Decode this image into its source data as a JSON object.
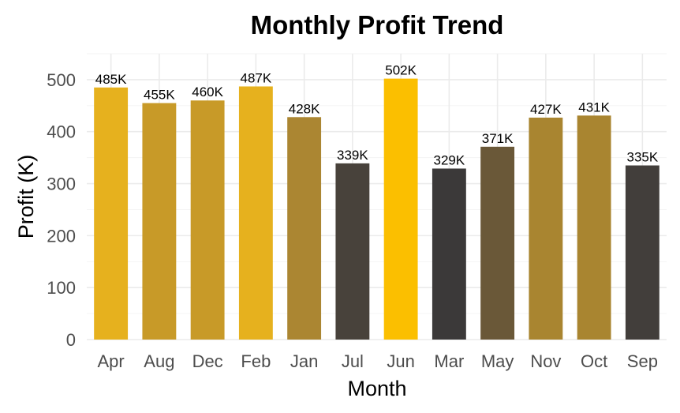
{
  "chart_data": {
    "type": "bar",
    "title": "Monthly Profit Trend",
    "xlabel": "Month",
    "ylabel": "Profit (K)",
    "categories": [
      "Apr",
      "Aug",
      "Dec",
      "Feb",
      "Jan",
      "Jul",
      "Jun",
      "Mar",
      "May",
      "Nov",
      "Oct",
      "Sep"
    ],
    "values": [
      485,
      455,
      460,
      487,
      428,
      339,
      502,
      329,
      371,
      427,
      431,
      335
    ],
    "labels": [
      "485K",
      "455K",
      "460K",
      "487K",
      "428K",
      "339K",
      "502K",
      "329K",
      "371K",
      "427K",
      "431K",
      "335K"
    ],
    "bar_colors": [
      "#e6b11e",
      "#c89a28",
      "#c89a28",
      "#e6b11e",
      "#ab8632",
      "#48423b",
      "#fbbf00",
      "#3b3939",
      "#6a5838",
      "#a98530",
      "#a98530",
      "#423e3b"
    ],
    "ylim": [
      0,
      550
    ],
    "yticks": [
      0,
      100,
      200,
      300,
      400,
      500
    ],
    "grid": true,
    "legend": "none"
  }
}
